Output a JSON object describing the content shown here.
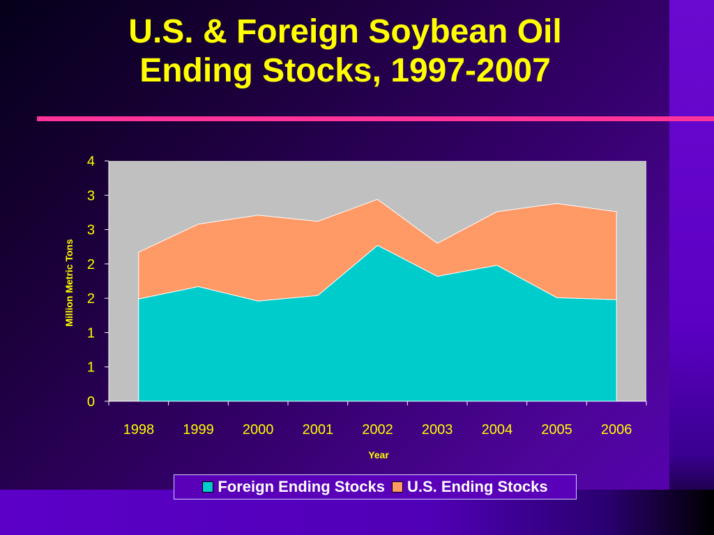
{
  "slide": {
    "title_line1": "U.S. & Foreign Soybean Oil",
    "title_line2": "Ending Stocks, 1997-2007"
  },
  "colors": {
    "title": "#ffff00",
    "rule": "#ff3399",
    "plot_background": "#c0c0c0",
    "foreign": "#00cccc",
    "us": "#ff9966",
    "axis_text": "#ffff00"
  },
  "chart_data": {
    "type": "area",
    "stacked": true,
    "title": "",
    "xlabel": "Year",
    "ylabel": "Million Metric Tons",
    "categories": [
      "1998",
      "1999",
      "2000",
      "2001",
      "2002",
      "2003",
      "2004",
      "2005",
      "2006"
    ],
    "y_tick_labels": [
      "0",
      "1",
      "1",
      "2",
      "2",
      "3",
      "3",
      "4"
    ],
    "ylim": [
      0,
      3.5
    ],
    "grid": false,
    "legend_position": "bottom",
    "series": [
      {
        "name": "Foreign Ending Stocks",
        "color": "#00cccc",
        "values": [
          1.49,
          1.67,
          1.46,
          1.54,
          2.27,
          1.82,
          1.98,
          1.51,
          1.48
        ]
      },
      {
        "name": "U.S. Ending Stocks",
        "color": "#ff9966",
        "values": [
          0.68,
          0.91,
          1.25,
          1.08,
          0.67,
          0.48,
          0.78,
          1.37,
          1.28
        ]
      }
    ]
  }
}
